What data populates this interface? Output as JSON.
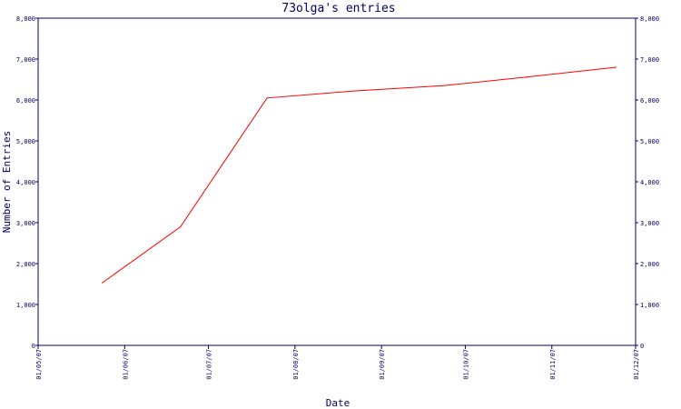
{
  "chart_data": {
    "type": "line",
    "title": "73olga's entries",
    "xlabel": "Date",
    "ylabel": "Number of Entries",
    "ylim": [
      0,
      8000
    ],
    "y_ticks": [
      {
        "value": 0,
        "label": "0"
      },
      {
        "value": 1000,
        "label": "1,000"
      },
      {
        "value": 2000,
        "label": "2,000"
      },
      {
        "value": 3000,
        "label": "3,000"
      },
      {
        "value": 4000,
        "label": "4,000"
      },
      {
        "value": 5000,
        "label": "5,000"
      },
      {
        "value": 6000,
        "label": "6,000"
      },
      {
        "value": 7000,
        "label": "7,000"
      },
      {
        "value": 8000,
        "label": "8,000"
      }
    ],
    "x_ticks": [
      "01/05/07",
      "01/06/07",
      "01/07/07",
      "01/08/07",
      "01/09/07",
      "01/10/07",
      "01/11/07",
      "01/12/07"
    ],
    "xlim": [
      "01/05/07",
      "01/12/07"
    ],
    "line_color": "#ff0000",
    "axis_color": "#000066",
    "series": [
      {
        "x": [
          "2007-05-24",
          "2007-06-21",
          "2007-07-22",
          "2007-08-22",
          "2007-09-23",
          "2007-10-23",
          "2007-11-24"
        ],
        "values": [
          1530,
          2900,
          6050,
          6220,
          6350,
          6560,
          6800
        ]
      }
    ]
  }
}
